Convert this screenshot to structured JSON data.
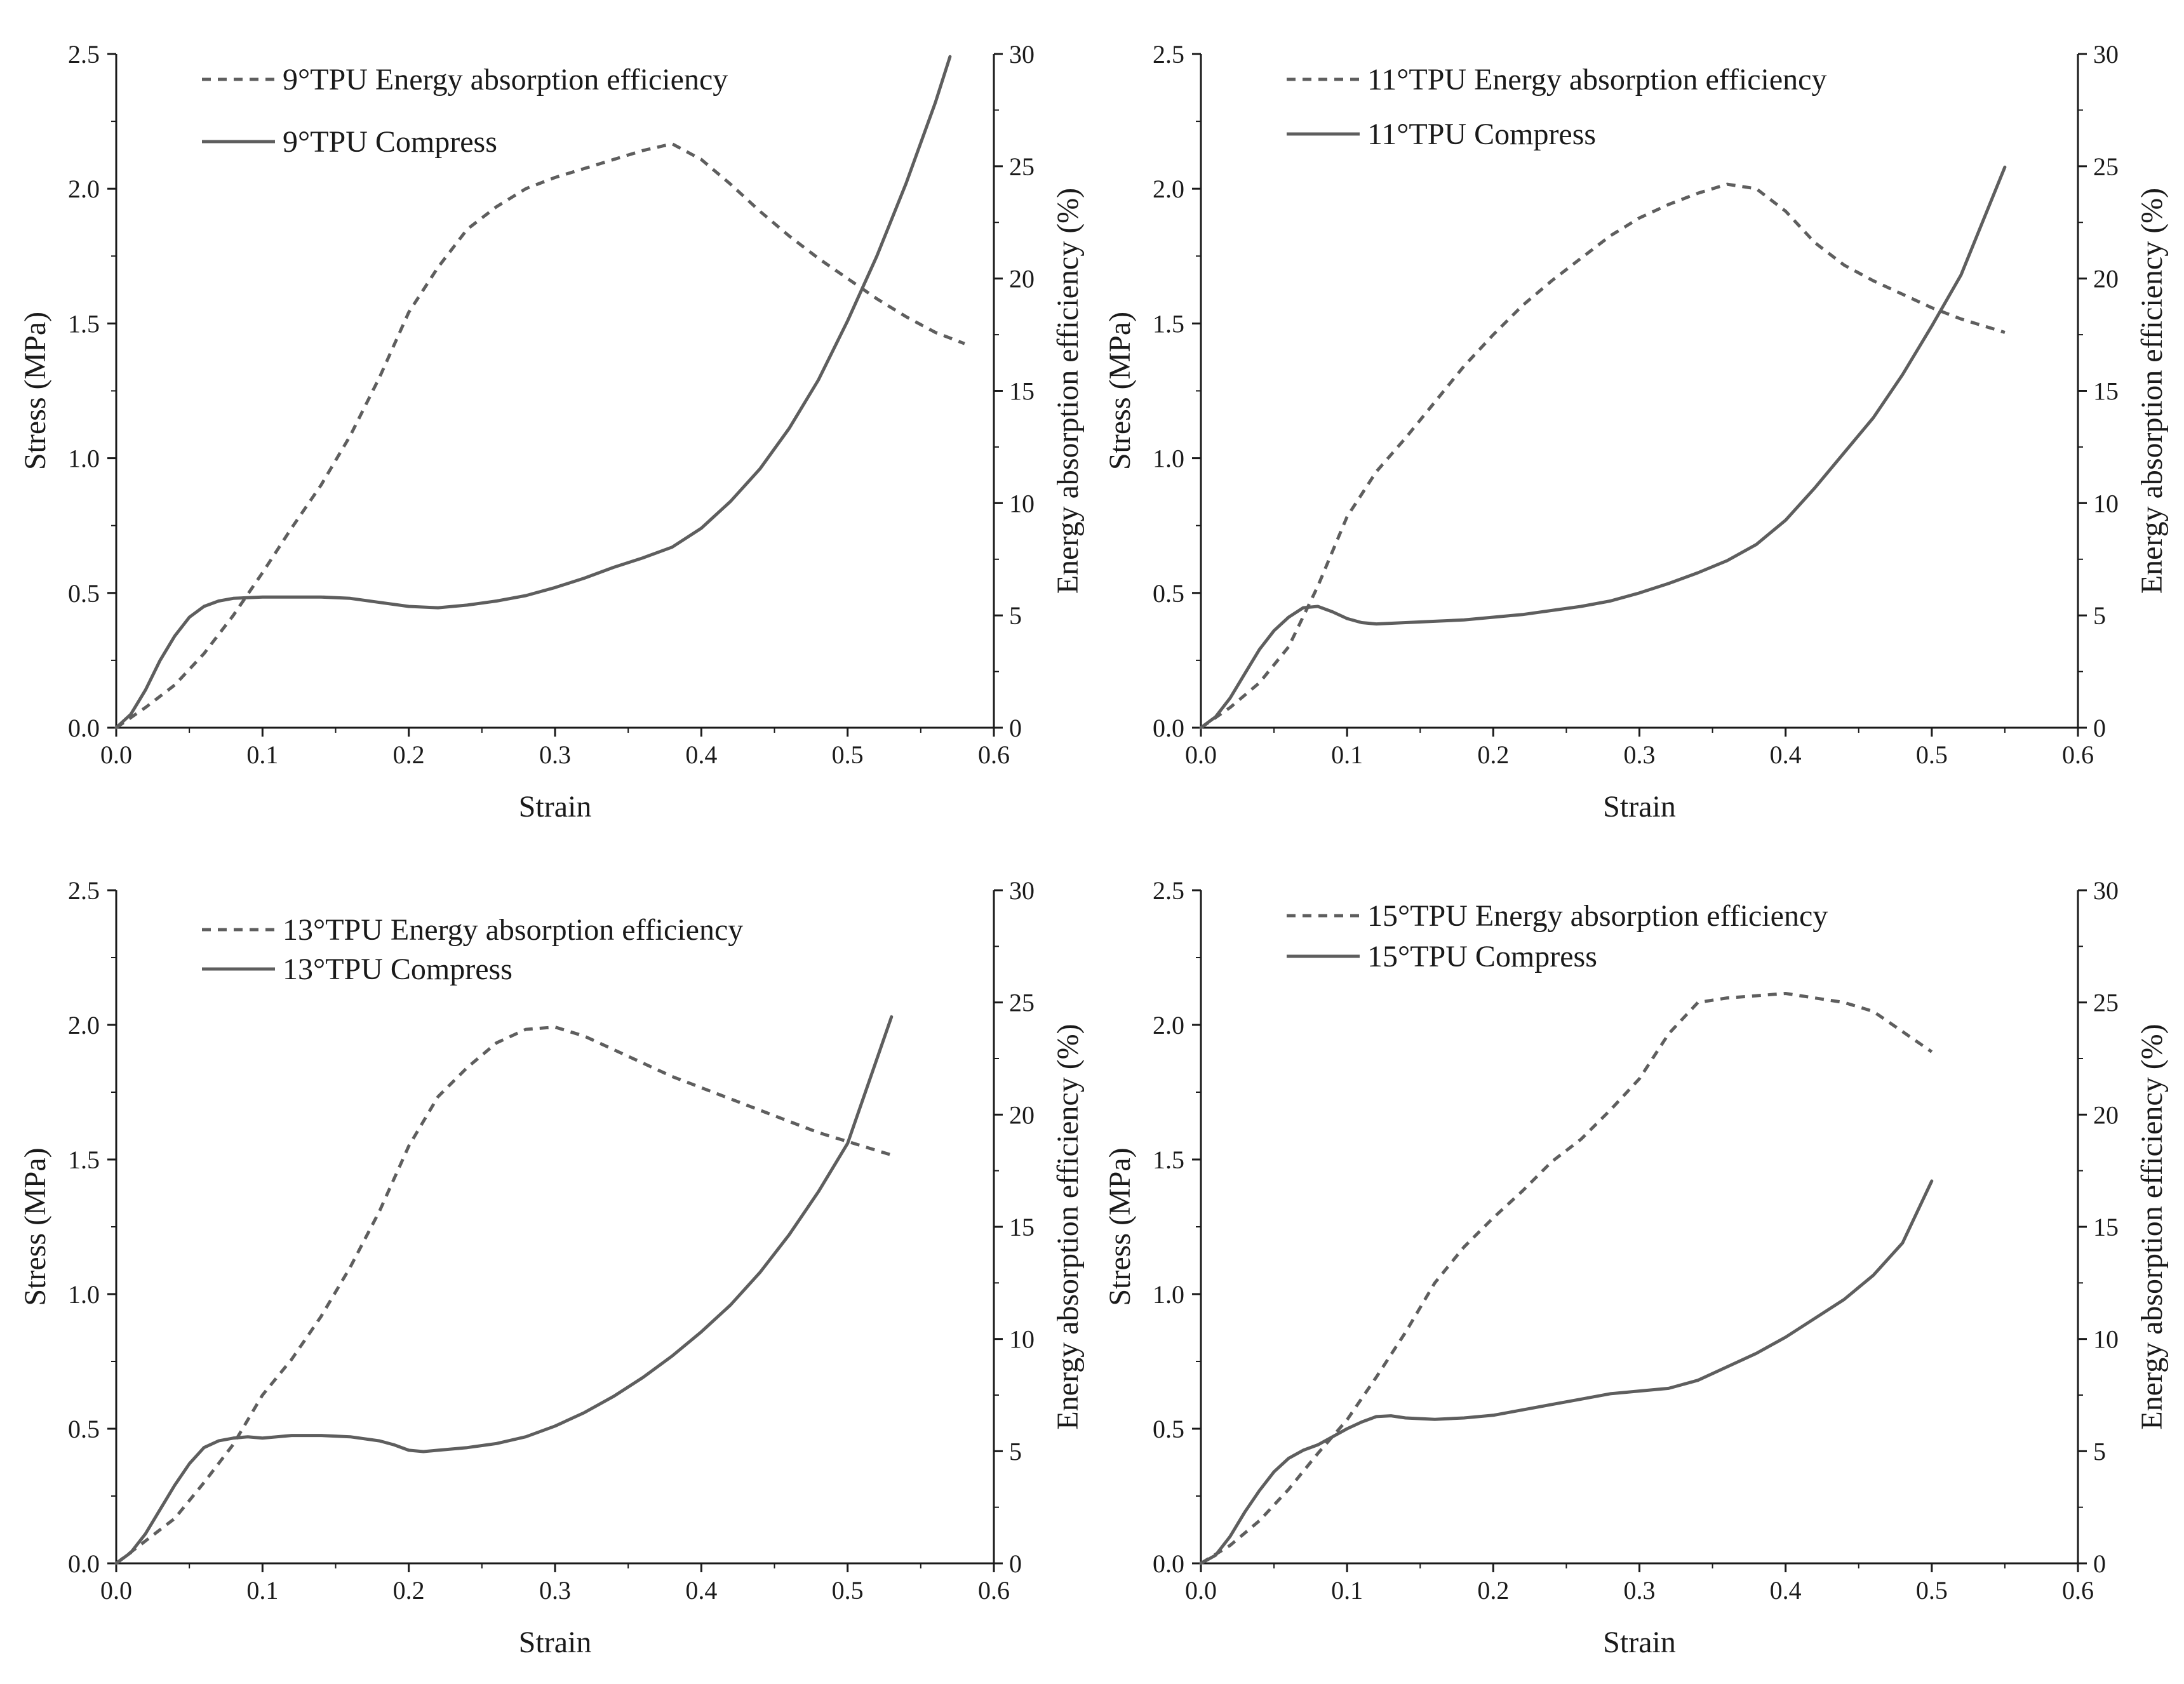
{
  "chart_data": [
    {
      "type": "line",
      "panel": "top-left",
      "xlabel": "Strain",
      "ylabel": "Stress (MPa)",
      "y2label": "Energy absorption efficiency (%)",
      "xlim": [
        0,
        0.6
      ],
      "ylim": [
        0,
        2.5
      ],
      "y2lim": [
        0,
        30
      ],
      "x_ticks": [
        "0.0",
        "0.1",
        "0.2",
        "0.3",
        "0.4",
        "0.5",
        "0.6"
      ],
      "y_ticks": [
        "0.0",
        "0.5",
        "1.0",
        "1.5",
        "2.0",
        "2.5"
      ],
      "y2_ticks": [
        "0",
        "5",
        "10",
        "15",
        "20",
        "25",
        "30"
      ],
      "legend_placement": "top-left",
      "series": [
        {
          "name": "9°TPU Energy absorption efficiency",
          "axis": "right",
          "style": "dashed",
          "x": [
            0,
            0.02,
            0.04,
            0.06,
            0.08,
            0.1,
            0.12,
            0.14,
            0.16,
            0.18,
            0.2,
            0.22,
            0.24,
            0.26,
            0.28,
            0.3,
            0.32,
            0.34,
            0.36,
            0.38,
            0.4,
            0.42,
            0.44,
            0.46,
            0.48,
            0.5,
            0.52,
            0.54,
            0.56,
            0.58
          ],
          "values": [
            0,
            0.9,
            1.9,
            3.3,
            5.0,
            6.9,
            8.9,
            10.8,
            13.0,
            15.6,
            18.5,
            20.5,
            22.2,
            23.2,
            24.0,
            24.5,
            24.9,
            25.3,
            25.7,
            26.0,
            25.3,
            24.2,
            23.0,
            21.9,
            20.9,
            20.0,
            19.1,
            18.3,
            17.6,
            17.1
          ]
        },
        {
          "name": "9°TPU Compress",
          "axis": "left",
          "style": "solid",
          "x": [
            0,
            0.01,
            0.02,
            0.03,
            0.04,
            0.05,
            0.06,
            0.07,
            0.08,
            0.1,
            0.12,
            0.14,
            0.16,
            0.18,
            0.2,
            0.22,
            0.24,
            0.26,
            0.28,
            0.3,
            0.32,
            0.34,
            0.36,
            0.38,
            0.4,
            0.42,
            0.44,
            0.46,
            0.48,
            0.5,
            0.52,
            0.54,
            0.56,
            0.57
          ],
          "values": [
            0,
            0.05,
            0.14,
            0.25,
            0.34,
            0.41,
            0.45,
            0.47,
            0.48,
            0.485,
            0.485,
            0.485,
            0.48,
            0.465,
            0.45,
            0.445,
            0.455,
            0.47,
            0.49,
            0.52,
            0.555,
            0.595,
            0.63,
            0.67,
            0.74,
            0.84,
            0.96,
            1.11,
            1.29,
            1.51,
            1.75,
            2.02,
            2.32,
            2.49
          ]
        }
      ]
    },
    {
      "type": "line",
      "panel": "top-right",
      "xlabel": "Strain",
      "ylabel": "Stress (MPa)",
      "y2label": "Energy absorption efficiency (%)",
      "xlim": [
        0,
        0.6
      ],
      "ylim": [
        0,
        2.5
      ],
      "y2lim": [
        0,
        30
      ],
      "x_ticks": [
        "0.0",
        "0.1",
        "0.2",
        "0.3",
        "0.4",
        "0.5",
        "0.6"
      ],
      "y_ticks": [
        "0.0",
        "0.5",
        "1.0",
        "1.5",
        "2.0",
        "2.5"
      ],
      "y2_ticks": [
        "0",
        "5",
        "10",
        "15",
        "20",
        "25",
        "30"
      ],
      "legend_placement": "top-left",
      "series": [
        {
          "name": "11°TPU Energy absorption efficiency",
          "axis": "right",
          "style": "dashed",
          "x": [
            0,
            0.02,
            0.04,
            0.06,
            0.08,
            0.1,
            0.12,
            0.14,
            0.16,
            0.18,
            0.2,
            0.22,
            0.24,
            0.26,
            0.28,
            0.3,
            0.32,
            0.34,
            0.36,
            0.38,
            0.4,
            0.42,
            0.44,
            0.46,
            0.48,
            0.5,
            0.52,
            0.55
          ],
          "values": [
            0,
            0.9,
            2.0,
            3.6,
            6.3,
            9.4,
            11.4,
            12.9,
            14.5,
            16.1,
            17.5,
            18.8,
            19.9,
            20.9,
            21.9,
            22.7,
            23.3,
            23.8,
            24.2,
            24.0,
            23.0,
            21.6,
            20.6,
            19.9,
            19.3,
            18.7,
            18.2,
            17.6
          ]
        },
        {
          "name": "11°TPU Compress",
          "axis": "left",
          "style": "solid",
          "x": [
            0,
            0.01,
            0.02,
            0.03,
            0.04,
            0.05,
            0.06,
            0.07,
            0.08,
            0.09,
            0.1,
            0.11,
            0.12,
            0.14,
            0.16,
            0.18,
            0.2,
            0.22,
            0.24,
            0.26,
            0.28,
            0.3,
            0.32,
            0.34,
            0.36,
            0.38,
            0.4,
            0.42,
            0.44,
            0.46,
            0.48,
            0.5,
            0.52,
            0.55
          ],
          "values": [
            0,
            0.04,
            0.11,
            0.2,
            0.29,
            0.36,
            0.41,
            0.445,
            0.45,
            0.43,
            0.405,
            0.39,
            0.385,
            0.39,
            0.395,
            0.4,
            0.41,
            0.42,
            0.435,
            0.45,
            0.47,
            0.5,
            0.535,
            0.575,
            0.62,
            0.68,
            0.77,
            0.89,
            1.02,
            1.15,
            1.31,
            1.49,
            1.68,
            2.08
          ]
        }
      ]
    },
    {
      "type": "line",
      "panel": "bottom-left",
      "xlabel": "Strain",
      "ylabel": "Stress (MPa)",
      "y2label": "Energy absorption efficiency (%)",
      "xlim": [
        0,
        0.6
      ],
      "ylim": [
        0,
        2.5
      ],
      "y2lim": [
        0,
        30
      ],
      "x_ticks": [
        "0.0",
        "0.1",
        "0.2",
        "0.3",
        "0.4",
        "0.5",
        "0.6"
      ],
      "y_ticks": [
        "0.0",
        "0.5",
        "1.0",
        "1.5",
        "2.0",
        "2.5"
      ],
      "y2_ticks": [
        "0",
        "5",
        "10",
        "15",
        "20",
        "25",
        "30"
      ],
      "legend_placement": "top-left",
      "series": [
        {
          "name": "13°TPU Energy absorption efficiency",
          "axis": "right",
          "style": "dashed",
          "x": [
            0,
            0.02,
            0.04,
            0.06,
            0.08,
            0.1,
            0.12,
            0.14,
            0.16,
            0.18,
            0.2,
            0.22,
            0.24,
            0.26,
            0.28,
            0.3,
            0.32,
            0.34,
            0.36,
            0.38,
            0.4,
            0.42,
            0.44,
            0.46,
            0.48,
            0.5,
            0.53
          ],
          "values": [
            0,
            1.0,
            2.0,
            3.6,
            5.3,
            7.5,
            9.1,
            11.0,
            13.2,
            15.7,
            18.6,
            20.8,
            22.1,
            23.2,
            23.8,
            23.9,
            23.5,
            22.9,
            22.3,
            21.7,
            21.2,
            20.7,
            20.2,
            19.7,
            19.2,
            18.8,
            18.2
          ]
        },
        {
          "name": "13°TPU Compress",
          "axis": "left",
          "style": "solid",
          "x": [
            0,
            0.01,
            0.02,
            0.03,
            0.04,
            0.05,
            0.06,
            0.07,
            0.08,
            0.09,
            0.1,
            0.12,
            0.14,
            0.16,
            0.18,
            0.19,
            0.2,
            0.21,
            0.22,
            0.24,
            0.26,
            0.28,
            0.3,
            0.32,
            0.34,
            0.36,
            0.38,
            0.4,
            0.42,
            0.44,
            0.46,
            0.48,
            0.5,
            0.53
          ],
          "values": [
            0,
            0.04,
            0.11,
            0.2,
            0.29,
            0.37,
            0.43,
            0.455,
            0.465,
            0.47,
            0.465,
            0.475,
            0.475,
            0.47,
            0.455,
            0.44,
            0.42,
            0.415,
            0.42,
            0.43,
            0.445,
            0.47,
            0.51,
            0.56,
            0.62,
            0.69,
            0.77,
            0.86,
            0.96,
            1.08,
            1.22,
            1.38,
            1.56,
            2.03
          ]
        }
      ]
    },
    {
      "type": "line",
      "panel": "bottom-right",
      "xlabel": "Strain",
      "ylabel": "Stress (MPa)",
      "y2label": "Energy absorption efficiency (%)",
      "xlim": [
        0,
        0.6
      ],
      "ylim": [
        0,
        2.5
      ],
      "y2lim": [
        0,
        30
      ],
      "x_ticks": [
        "0.0",
        "0.1",
        "0.2",
        "0.3",
        "0.4",
        "0.5",
        "0.6"
      ],
      "y_ticks": [
        "0.0",
        "0.5",
        "1.0",
        "1.5",
        "2.0",
        "2.5"
      ],
      "y2_ticks": [
        "0",
        "5",
        "10",
        "15",
        "20",
        "25",
        "30"
      ],
      "legend_placement": "top-left",
      "series": [
        {
          "name": "15°TPU Energy absorption efficiency",
          "axis": "right",
          "style": "dashed",
          "x": [
            0,
            0.02,
            0.04,
            0.06,
            0.08,
            0.1,
            0.12,
            0.14,
            0.16,
            0.18,
            0.2,
            0.22,
            0.24,
            0.26,
            0.28,
            0.3,
            0.32,
            0.34,
            0.36,
            0.38,
            0.4,
            0.42,
            0.44,
            0.46,
            0.48,
            0.5
          ],
          "values": [
            0,
            0.8,
            1.9,
            3.3,
            4.9,
            6.4,
            8.3,
            10.3,
            12.5,
            14.1,
            15.4,
            16.6,
            17.9,
            18.9,
            20.2,
            21.6,
            23.6,
            25.0,
            25.2,
            25.3,
            25.4,
            25.2,
            25.0,
            24.6,
            23.7,
            22.8
          ]
        },
        {
          "name": "15°TPU Compress",
          "axis": "left",
          "style": "solid",
          "x": [
            0,
            0.01,
            0.02,
            0.03,
            0.04,
            0.05,
            0.06,
            0.07,
            0.08,
            0.09,
            0.1,
            0.11,
            0.12,
            0.13,
            0.14,
            0.16,
            0.18,
            0.2,
            0.22,
            0.24,
            0.26,
            0.28,
            0.3,
            0.32,
            0.34,
            0.36,
            0.38,
            0.4,
            0.42,
            0.44,
            0.46,
            0.48,
            0.5
          ],
          "values": [
            0,
            0.03,
            0.1,
            0.19,
            0.27,
            0.34,
            0.39,
            0.42,
            0.44,
            0.47,
            0.5,
            0.525,
            0.545,
            0.548,
            0.54,
            0.535,
            0.54,
            0.55,
            0.57,
            0.59,
            0.61,
            0.63,
            0.64,
            0.65,
            0.68,
            0.73,
            0.78,
            0.84,
            0.91,
            0.98,
            1.07,
            1.19,
            1.42
          ]
        }
      ]
    }
  ]
}
